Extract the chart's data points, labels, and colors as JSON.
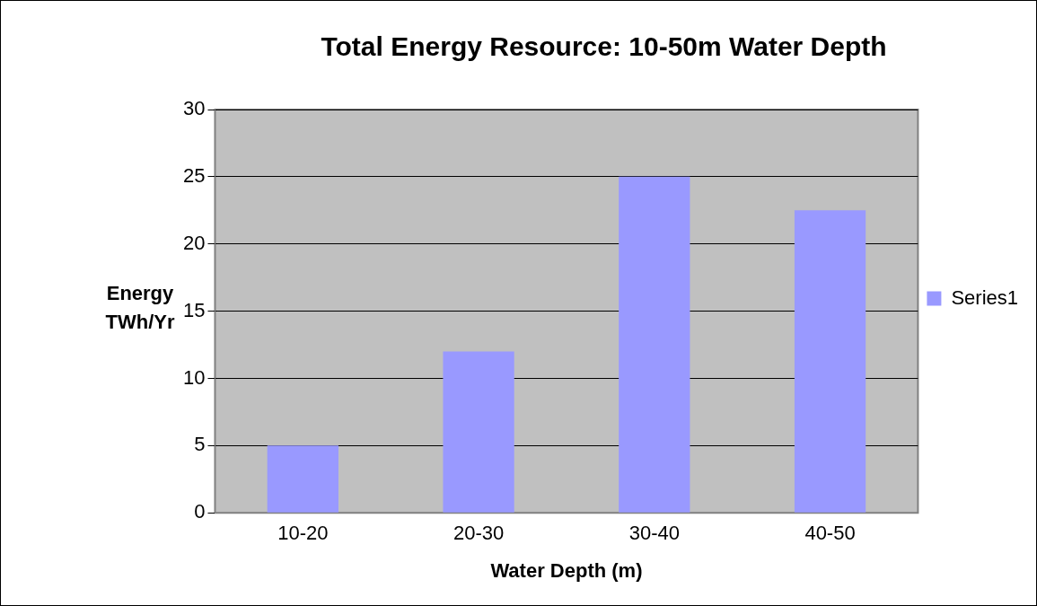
{
  "chart_data": {
    "type": "bar",
    "title": "Total Energy Resource: 10-50m Water Depth",
    "xlabel": "Water Depth (m)",
    "ylabel": "Energy TWh/Yr",
    "categories": [
      "10-20",
      "20-30",
      "30-40",
      "40-50"
    ],
    "series": [
      {
        "name": "Series1",
        "color": "#9999ff",
        "values": [
          5,
          12,
          25,
          22.5
        ]
      }
    ],
    "ylim": [
      0,
      30
    ],
    "yticks": [
      0,
      5,
      10,
      15,
      20,
      25,
      30
    ],
    "grid": "y",
    "legend": "right"
  }
}
